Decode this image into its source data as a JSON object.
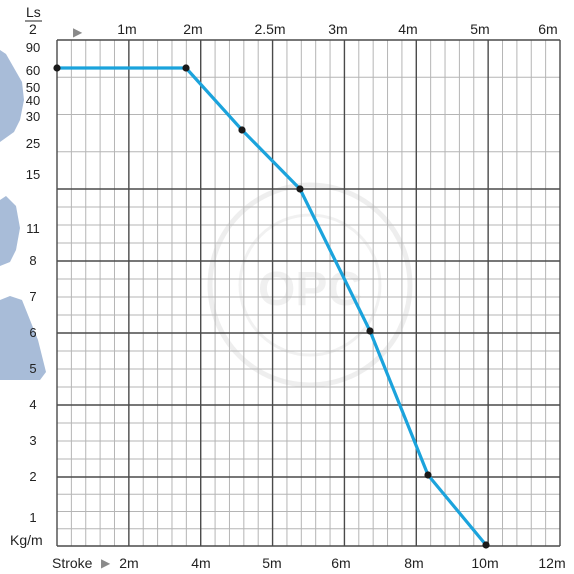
{
  "chart_data": {
    "type": "line",
    "y_axis": {
      "label": "Kg/m",
      "ticks": [
        "1",
        "2",
        "3",
        "4",
        "5",
        "6",
        "7",
        "8",
        "11",
        "15",
        "25",
        "30",
        "40",
        "50",
        "60",
        "90"
      ]
    },
    "x_axis_bottom": {
      "label": "Stroke",
      "arrow": "▶",
      "ticks": [
        "2m",
        "4m",
        "5m",
        "6m",
        "8m",
        "10m",
        "12m"
      ]
    },
    "x_axis_top": {
      "label_numerator": "Ls",
      "label_denominator": "2",
      "arrow": "▶",
      "ticks": [
        "1m",
        "2m",
        "2.5m",
        "3m",
        "4m",
        "5m",
        "6m"
      ]
    },
    "series": [
      {
        "color": "#1ba3dc",
        "points": [
          {
            "stroke": "1.5m",
            "load": "60"
          },
          {
            "stroke": "3.7m",
            "load": "60"
          },
          {
            "stroke": "4.6m",
            "load": "30"
          },
          {
            "stroke": "5.4m",
            "load": "15"
          },
          {
            "stroke": "6.9m",
            "load": "6"
          },
          {
            "stroke": "8.3m",
            "load": "2"
          },
          {
            "stroke": "10m",
            "load": "1"
          }
        ]
      }
    ],
    "grid": true,
    "watermark": "OPC"
  }
}
